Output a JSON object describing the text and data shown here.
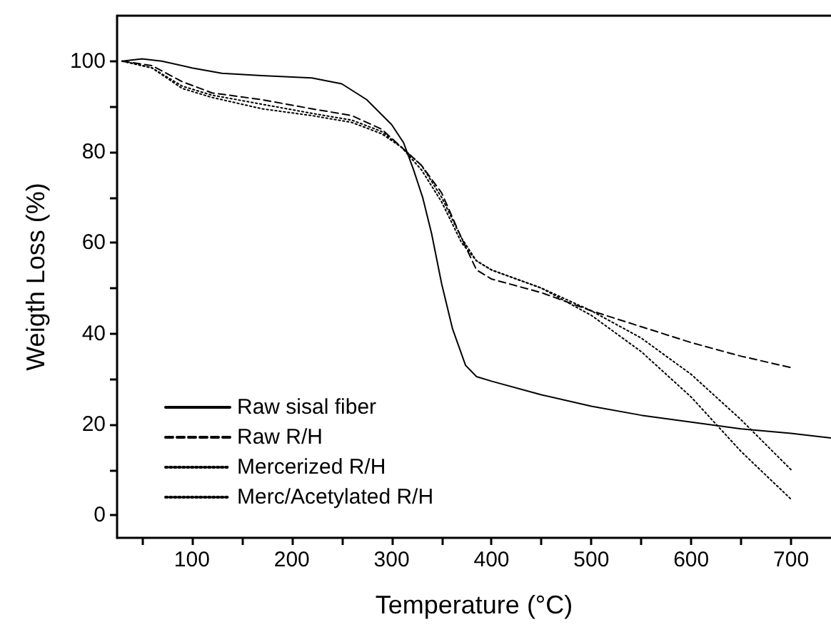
{
  "chart_data": {
    "type": "line",
    "xlabel": "Temperature (°C)",
    "ylabel": "Weigth Loss (%)",
    "xlim": [
      25,
      740
    ],
    "ylim": [
      -5,
      110
    ],
    "xticks": [
      {
        "value": 50,
        "label": null
      },
      100,
      {
        "value": 150,
        "label": null
      },
      200,
      {
        "value": 250,
        "label": null
      },
      300,
      {
        "value": 350,
        "label": null
      },
      400,
      {
        "value": 450,
        "label": null
      },
      500,
      {
        "value": 550,
        "label": null
      },
      600,
      {
        "value": 650,
        "label": null
      },
      700
    ],
    "yticks": [
      0,
      {
        "value": 10,
        "label": null
      },
      20,
      {
        "value": 30,
        "label": null
      },
      40,
      {
        "value": 50,
        "label": null
      },
      60,
      {
        "value": 70,
        "label": null
      },
      80,
      {
        "value": 90,
        "label": null
      },
      100
    ],
    "grid": false,
    "legend": "bottom left",
    "marker": "none",
    "series": [
      {
        "name": "Raw sisal fiber",
        "color": "#000000",
        "line_style": "solid",
        "x": [
          30,
          50,
          70,
          100,
          130,
          170,
          220,
          250,
          275,
          300,
          312,
          322,
          331,
          340,
          350,
          361,
          374,
          385,
          400,
          450,
          500,
          550,
          600,
          650,
          700,
          740
        ],
        "values": [
          100,
          100.5,
          100,
          98.5,
          97.3,
          96.8,
          96.3,
          95,
          91.5,
          86,
          82,
          76,
          70,
          62,
          51,
          41,
          33,
          30.5,
          29.5,
          26.5,
          24,
          22,
          20.5,
          19,
          18,
          17
        ]
      },
      {
        "name": "Raw R/H",
        "color": "#000000",
        "line_style": "dashed",
        "x": [
          30,
          60,
          90,
          120,
          170,
          220,
          260,
          290,
          310,
          330,
          350,
          370,
          385,
          400,
          450,
          500,
          550,
          600,
          650,
          700
        ],
        "values": [
          100,
          99,
          95.5,
          93,
          91.5,
          89.5,
          88,
          85,
          81,
          77,
          71,
          61,
          54,
          52,
          49,
          45,
          41.5,
          38,
          35,
          32.5
        ]
      },
      {
        "name": "Mercerized R/H",
        "color": "#000000",
        "line_style": "dotted",
        "x": [
          30,
          60,
          90,
          120,
          170,
          220,
          260,
          290,
          310,
          330,
          350,
          370,
          385,
          400,
          450,
          500,
          550,
          600,
          650,
          700
        ],
        "values": [
          100,
          98.5,
          94,
          92,
          89.5,
          88,
          86.5,
          84,
          81,
          76,
          69,
          60,
          56,
          54,
          50,
          45,
          39,
          31,
          21,
          10
        ]
      },
      {
        "name": "Merc/Acetylated R/H",
        "color": "#000000",
        "line_style": "dotted",
        "x": [
          30,
          60,
          90,
          120,
          170,
          220,
          260,
          290,
          310,
          330,
          350,
          370,
          385,
          400,
          450,
          500,
          550,
          600,
          650,
          700
        ],
        "values": [
          100,
          98.5,
          94.5,
          92.5,
          90.5,
          88.5,
          87,
          84.5,
          81,
          77,
          70,
          61,
          56,
          54,
          50,
          44,
          36,
          26,
          14,
          3.5
        ]
      }
    ]
  }
}
